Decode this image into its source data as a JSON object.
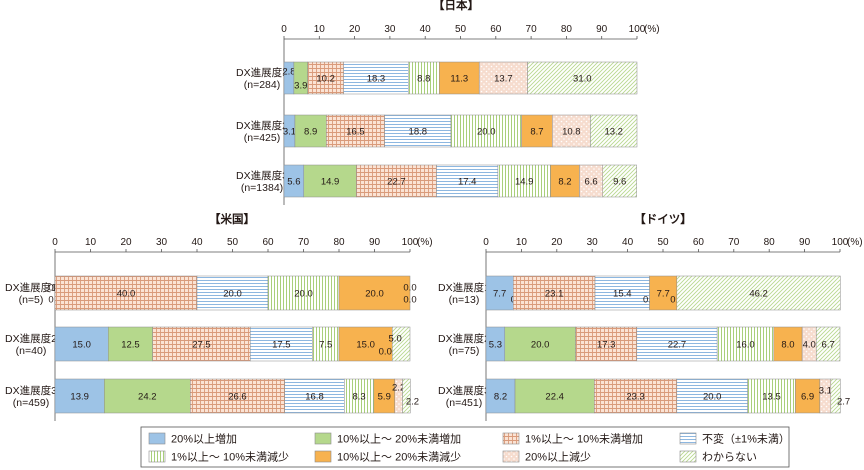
{
  "chart_data": {
    "type": "bar",
    "stacked": true,
    "orientation": "horizontal",
    "xlim": [
      0,
      100
    ],
    "x_ticks": [
      "0",
      "10",
      "20",
      "30",
      "40",
      "50",
      "60",
      "70",
      "80",
      "90",
      "100"
    ],
    "unit": "(%)",
    "grid": false,
    "legend_position": "bottom",
    "legend": [
      {
        "label": "20%以上増加",
        "color": "#9DC3E6",
        "pattern": "solid"
      },
      {
        "label": "10%以上～ 20%未満増加",
        "color": "#B5D88C",
        "pattern": "solid"
      },
      {
        "label": "1%以上～ 10%未満増加",
        "color": "#F3CDB8",
        "pattern": "grid"
      },
      {
        "label": "不変（±1%未満）",
        "color": "#C5DDF2",
        "pattern": "hlines"
      },
      {
        "label": "1%以上～ 10%未満減少",
        "color": "#DCEBC5",
        "pattern": "vlines"
      },
      {
        "label": "10%以上～ 20%未満減少",
        "color": "#F7B24F",
        "pattern": "solid"
      },
      {
        "label": "20%以上減少",
        "color": "#F4DCCF",
        "pattern": "dots"
      },
      {
        "label": "わからない",
        "color": "#E4F0D2",
        "pattern": "diag"
      }
    ],
    "panels": [
      {
        "title": "【日本】",
        "categories": [
          "DX進展度1",
          "DX進展度2",
          "DX進展度3"
        ],
        "n_labels": [
          "(n=284)",
          "(n=425)",
          "(n=1384)"
        ],
        "series": [
          {
            "name": "20%以上増加",
            "values": [
              2.8,
              3.1,
              5.6
            ]
          },
          {
            "name": "10%以上～ 20%未満増加",
            "values": [
              3.9,
              8.9,
              14.9
            ]
          },
          {
            "name": "1%以上～ 10%未満増加",
            "values": [
              10.2,
              16.5,
              22.7
            ]
          },
          {
            "name": "不変（±1%未満）",
            "values": [
              18.3,
              18.8,
              17.4
            ]
          },
          {
            "name": "1%以上～ 10%未満減少",
            "values": [
              8.8,
              20.0,
              14.9
            ]
          },
          {
            "name": "10%以上～ 20%未満減少",
            "values": [
              11.3,
              8.7,
              8.2
            ]
          },
          {
            "name": "20%以上減少",
            "values": [
              13.7,
              10.8,
              6.6
            ]
          },
          {
            "name": "わからない",
            "values": [
              31.0,
              13.2,
              9.6
            ]
          }
        ],
        "data_labels": [
          [
            "2.8",
            "3.9",
            "10.2",
            "18.3",
            "8.8",
            "11.3",
            "13.7",
            "31.0"
          ],
          [
            "3.1",
            "8.9",
            "16.5",
            "18.8",
            "20.0",
            "8.7",
            "10.8",
            "13.2"
          ],
          [
            "5.6",
            "14.9",
            "22.7",
            "17.4",
            "14.9",
            "8.2",
            "6.6",
            "9.6"
          ]
        ]
      },
      {
        "title": "【米国】",
        "categories": [
          "DX進展度1",
          "DX進展度2",
          "DX進展度3"
        ],
        "n_labels": [
          "(n=5)",
          "(n=40)",
          "(n=459)"
        ],
        "series": [
          {
            "name": "20%以上増加",
            "values": [
              0.0,
              15.0,
              13.9
            ]
          },
          {
            "name": "10%以上～ 20%未満増加",
            "values": [
              0.0,
              12.5,
              24.2
            ]
          },
          {
            "name": "1%以上～ 10%未満増加",
            "values": [
              40.0,
              27.5,
              26.6
            ]
          },
          {
            "name": "不変（±1%未満）",
            "values": [
              20.0,
              17.5,
              16.8
            ]
          },
          {
            "name": "1%以上～ 10%未満減少",
            "values": [
              20.0,
              7.5,
              8.3
            ]
          },
          {
            "name": "10%以上～ 20%未満減少",
            "values": [
              20.0,
              15.0,
              5.9
            ]
          },
          {
            "name": "20%以上減少",
            "values": [
              0.0,
              0.0,
              2.2
            ]
          },
          {
            "name": "わからない",
            "values": [
              0.0,
              5.0,
              2.2
            ]
          }
        ],
        "data_labels": [
          [
            "0.0",
            "0.0",
            "40.0",
            "20.0",
            "20.0",
            "20.0",
            "0.0",
            "0.0"
          ],
          [
            "15.0",
            "12.5",
            "27.5",
            "17.5",
            "7.5",
            "15.0",
            "0.0",
            "5.0"
          ],
          [
            "13.9",
            "24.2",
            "26.6",
            "16.8",
            "8.3",
            "5.9",
            "2.2",
            "2.2"
          ]
        ]
      },
      {
        "title": "【ドイツ】",
        "categories": [
          "DX進展度1",
          "DX進展度2",
          "DX進展度3"
        ],
        "n_labels": [
          "(n=13)",
          "(n=75)",
          "(n=451)"
        ],
        "series": [
          {
            "name": "20%以上増加",
            "values": [
              7.7,
              5.3,
              8.2
            ]
          },
          {
            "name": "10%以上～ 20%未満増加",
            "values": [
              0.0,
              20.0,
              22.4
            ]
          },
          {
            "name": "1%以上～ 10%未満増加",
            "values": [
              23.1,
              17.3,
              23.3
            ]
          },
          {
            "name": "不変（±1%未満）",
            "values": [
              15.4,
              22.7,
              20.0
            ]
          },
          {
            "name": "1%以上～ 10%未満減少",
            "values": [
              0.0,
              16.0,
              13.5
            ]
          },
          {
            "name": "10%以上～ 20%未満減少",
            "values": [
              7.7,
              8.0,
              6.9
            ]
          },
          {
            "name": "20%以上減少",
            "values": [
              0.0,
              4.0,
              3.1
            ]
          },
          {
            "name": "わからない",
            "values": [
              46.2,
              6.7,
              2.7
            ]
          }
        ],
        "data_labels": [
          [
            "7.7",
            "0.0",
            "23.1",
            "15.4",
            "0.0",
            "7.7",
            "0.0",
            "46.2"
          ],
          [
            "5.3",
            "20.0",
            "17.3",
            "22.7",
            "16.0",
            "8.0",
            "4.0",
            "6.7"
          ],
          [
            "8.2",
            "22.4",
            "23.3",
            "20.0",
            "13.5",
            "6.9",
            "3.1",
            "2.7"
          ]
        ]
      }
    ]
  }
}
